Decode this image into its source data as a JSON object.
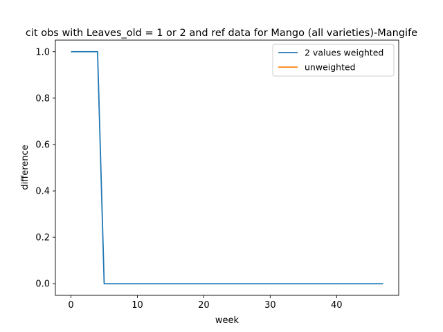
{
  "chart_data": {
    "type": "line",
    "title": "cit obs with Leaves_old = 1 or 2 and ref data for Mango (all varieties)-Mangife",
    "xlabel": "week",
    "ylabel": "difference",
    "xlim": [
      -2.35,
      49.35
    ],
    "ylim": [
      -0.05,
      1.05
    ],
    "x_ticks": [
      0,
      10,
      20,
      30,
      40
    ],
    "y_ticks": [
      0.0,
      0.2,
      0.4,
      0.6,
      0.8,
      1.0
    ],
    "x_tick_labels": [
      "0",
      "10",
      "20",
      "30",
      "40"
    ],
    "y_tick_labels": [
      "0.0",
      "0.2",
      "0.4",
      "0.6",
      "0.8",
      "1.0"
    ],
    "grid": false,
    "legend_position": "top-right",
    "series": [
      {
        "name": "2 values weighted",
        "color": "#1f77b4",
        "x": [
          0,
          1,
          2,
          3,
          4,
          5,
          6,
          7,
          8,
          9,
          10,
          11,
          12,
          13,
          14,
          15,
          16,
          17,
          18,
          19,
          20,
          21,
          22,
          23,
          24,
          25,
          26,
          27,
          28,
          29,
          30,
          31,
          32,
          33,
          34,
          35,
          36,
          37,
          38,
          39,
          40,
          41,
          42,
          43,
          44,
          45,
          46,
          47
        ],
        "y": [
          1,
          1,
          1,
          1,
          1,
          0,
          0,
          0,
          0,
          0,
          0,
          0,
          0,
          0,
          0,
          0,
          0,
          0,
          0,
          0,
          0,
          0,
          0,
          0,
          0,
          0,
          0,
          0,
          0,
          0,
          0,
          0,
          0,
          0,
          0,
          0,
          0,
          0,
          0,
          0,
          0,
          0,
          0,
          0,
          0,
          0,
          0,
          0
        ]
      },
      {
        "name": "unweighted",
        "color": "#ff7f0e",
        "x": [],
        "y": []
      }
    ]
  }
}
